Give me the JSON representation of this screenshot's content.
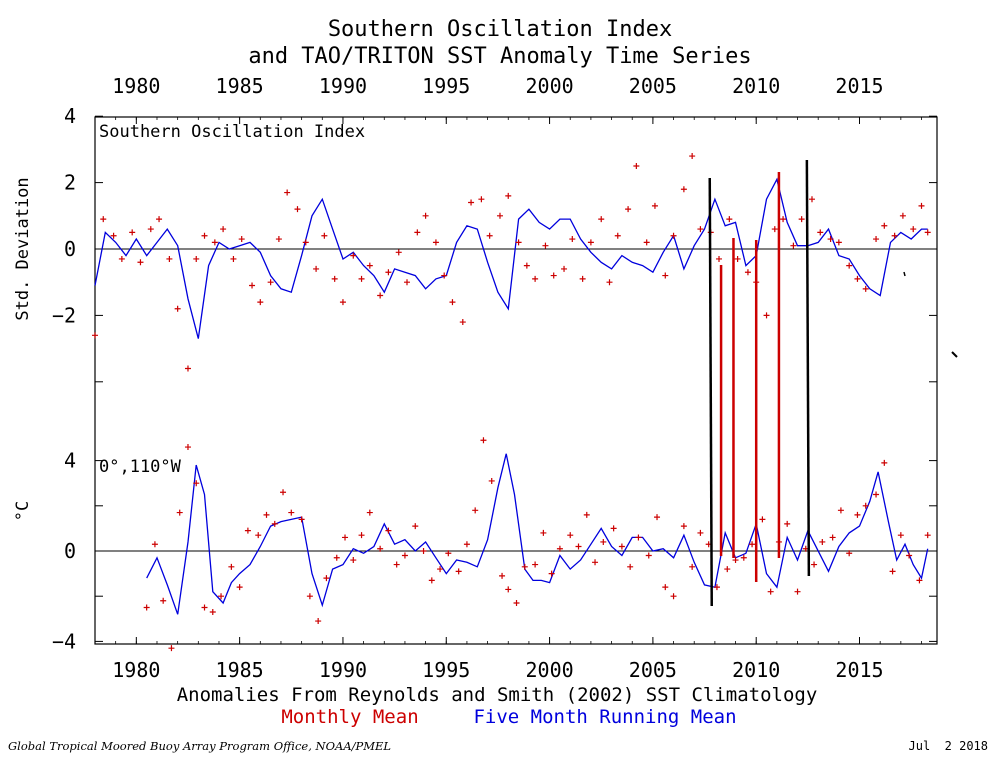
{
  "title": "Southern Oscillation Index",
  "subtitle": "and TAO/TRITON SST Anomaly Time Series",
  "footer_left": "Global Tropical Moored Buoy Array Program Office, NOAA/PMEL",
  "footer_right": "Jul  2 2018",
  "colors": {
    "monthly": "#cc0000",
    "running": "#0000dd",
    "axis": "#000000",
    "annot_black": "#000000",
    "annot_red": "#cc0000"
  },
  "chart_data": [
    {
      "type": "line",
      "panel_label": "Southern Oscillation Index",
      "xlabel": "",
      "ylabel": "Std. Deviation",
      "xlim": [
        1978,
        2018.75
      ],
      "ylim": [
        -4,
        4
      ],
      "x_ticks": [
        1980,
        1985,
        1990,
        1995,
        2000,
        2005,
        2010,
        2015
      ],
      "y_ticks": [
        -2,
        0,
        2,
        4
      ],
      "grid": false,
      "series": [
        {
          "name": "Five Month Running Mean",
          "x": [
            1978.0,
            1978.5,
            1979.0,
            1979.5,
            1980.0,
            1980.5,
            1981.0,
            1981.5,
            1982.0,
            1982.5,
            1983.0,
            1983.5,
            1984.0,
            1984.5,
            1985.0,
            1985.5,
            1986.0,
            1986.5,
            1987.0,
            1987.5,
            1988.0,
            1988.5,
            1989.0,
            1989.5,
            1990.0,
            1990.5,
            1991.0,
            1991.5,
            1992.0,
            1992.5,
            1993.0,
            1993.5,
            1994.0,
            1994.5,
            1995.0,
            1995.5,
            1996.0,
            1996.5,
            1997.0,
            1997.5,
            1998.0,
            1998.5,
            1999.0,
            1999.5,
            2000.0,
            2000.5,
            2001.0,
            2001.5,
            2002.0,
            2002.5,
            2003.0,
            2003.5,
            2004.0,
            2004.5,
            2005.0,
            2005.5,
            2006.0,
            2006.5,
            2007.0,
            2007.5,
            2008.0,
            2008.5,
            2009.0,
            2009.5,
            2010.0,
            2010.5,
            2011.0,
            2011.5,
            2012.0,
            2012.5,
            2013.0,
            2013.5,
            2014.0,
            2014.5,
            2015.0,
            2015.5,
            2016.0,
            2016.5,
            2017.0,
            2017.5,
            2018.0,
            2018.3
          ],
          "y": [
            -1.1,
            0.5,
            0.2,
            -0.2,
            0.3,
            -0.2,
            0.2,
            0.6,
            0.1,
            -1.5,
            -2.7,
            -0.5,
            0.2,
            0.0,
            0.1,
            0.2,
            -0.1,
            -0.8,
            -1.2,
            -1.3,
            -0.2,
            1.0,
            1.5,
            0.6,
            -0.3,
            -0.1,
            -0.5,
            -0.8,
            -1.3,
            -0.6,
            -0.7,
            -0.8,
            -1.2,
            -0.9,
            -0.8,
            0.2,
            0.7,
            0.6,
            -0.4,
            -1.3,
            -1.8,
            0.9,
            1.2,
            0.8,
            0.6,
            0.9,
            0.9,
            0.3,
            -0.1,
            -0.4,
            -0.6,
            -0.2,
            -0.4,
            -0.5,
            -0.7,
            -0.1,
            0.4,
            -0.6,
            0.1,
            0.6,
            1.5,
            0.7,
            0.8,
            -0.5,
            -0.2,
            1.5,
            2.1,
            0.8,
            0.1,
            0.1,
            0.2,
            0.6,
            -0.2,
            -0.3,
            -0.8,
            -1.2,
            -1.4,
            0.2,
            0.5,
            0.3,
            0.6,
            0.6
          ]
        },
        {
          "name": "Monthly Mean",
          "x": [
            1978.0,
            1978.4,
            1978.9,
            1979.3,
            1979.8,
            1980.2,
            1980.7,
            1981.1,
            1981.6,
            1982.0,
            1982.5,
            1982.9,
            1983.3,
            1983.8,
            1984.2,
            1984.7,
            1985.1,
            1985.6,
            1986.0,
            1986.5,
            1986.9,
            1987.3,
            1987.8,
            1988.2,
            1988.7,
            1989.1,
            1989.6,
            1990.0,
            1990.5,
            1990.9,
            1991.3,
            1991.8,
            1992.2,
            1992.7,
            1993.1,
            1993.6,
            1994.0,
            1994.5,
            1994.9,
            1995.3,
            1995.8,
            1996.2,
            1996.7,
            1997.1,
            1997.6,
            1998.0,
            1998.5,
            1998.9,
            1999.3,
            1999.8,
            2000.2,
            2000.7,
            2001.1,
            2001.6,
            2002.0,
            2002.5,
            2002.9,
            2003.3,
            2003.8,
            2004.2,
            2004.7,
            2005.1,
            2005.6,
            2006.0,
            2006.5,
            2006.9,
            2007.3,
            2007.8,
            2008.2,
            2008.7,
            2009.1,
            2009.6,
            2010.0,
            2010.5,
            2010.9,
            2011.3,
            2011.8,
            2012.2,
            2012.7,
            2013.1,
            2013.6,
            2014.0,
            2014.5,
            2014.9,
            2015.3,
            2015.8,
            2016.2,
            2016.7,
            2017.1,
            2017.6,
            2018.0,
            2018.3
          ],
          "y": [
            -2.6,
            0.9,
            0.4,
            -0.3,
            0.5,
            -0.4,
            0.6,
            0.9,
            -0.3,
            -1.8,
            -3.6,
            -0.3,
            0.4,
            0.2,
            0.6,
            -0.3,
            0.3,
            -1.1,
            -1.6,
            -1.0,
            0.3,
            1.7,
            1.2,
            0.2,
            -0.6,
            0.4,
            -0.9,
            -1.6,
            -0.2,
            -0.9,
            -0.5,
            -1.4,
            -0.7,
            -0.1,
            -1.0,
            0.5,
            1.0,
            0.2,
            -0.8,
            -1.6,
            -2.2,
            1.4,
            1.5,
            0.4,
            1.0,
            1.6,
            0.2,
            -0.5,
            -0.9,
            0.1,
            -0.8,
            -0.6,
            0.3,
            -0.9,
            0.2,
            0.9,
            -1.0,
            0.4,
            1.2,
            2.5,
            0.2,
            1.3,
            -0.8,
            0.4,
            1.8,
            2.8,
            0.6,
            0.5,
            -0.3,
            0.9,
            -0.3,
            -0.7,
            -1.0,
            -2.0,
            0.6,
            0.9,
            0.1,
            0.9,
            1.5,
            0.5,
            0.3,
            0.2,
            -0.5,
            -0.9,
            -1.2,
            0.3,
            0.7,
            0.4,
            1.0,
            0.6,
            1.3,
            0.5
          ]
        }
      ]
    },
    {
      "type": "line",
      "panel_label": "0°,110°W",
      "xlabel": "Anomalies From Reynolds and Smith (2002) SST Climatology",
      "ylabel": "°C",
      "xlim": [
        1978,
        2018.75
      ],
      "ylim": [
        -4,
        4
      ],
      "x_ticks": [
        1980,
        1985,
        1990,
        1995,
        2000,
        2005,
        2010,
        2015
      ],
      "y_ticks": [
        -4,
        0,
        4
      ],
      "grid": false,
      "series": [
        {
          "name": "Five Month Running Mean",
          "x": [
            1980.5,
            1981.0,
            1981.5,
            1982.0,
            1982.5,
            1982.9,
            1983.3,
            1983.7,
            1984.2,
            1984.6,
            1985.0,
            1985.5,
            1986.0,
            1986.5,
            1987.0,
            1987.5,
            1988.0,
            1988.5,
            1989.0,
            1989.5,
            1990.0,
            1990.5,
            1991.0,
            1991.5,
            1992.0,
            1992.5,
            1993.0,
            1993.5,
            1994.0,
            1994.5,
            1995.0,
            1995.5,
            1996.0,
            1996.5,
            1997.0,
            1997.5,
            1997.9,
            1998.3,
            1998.8,
            1999.2,
            1999.6,
            2000.0,
            2000.5,
            2001.0,
            2001.5,
            2002.0,
            2002.5,
            2003.0,
            2003.5,
            2004.0,
            2004.5,
            2005.0,
            2005.5,
            2006.0,
            2006.5,
            2007.0,
            2007.5,
            2008.0,
            2008.5,
            2009.0,
            2009.5,
            2010.0,
            2010.5,
            2011.0,
            2011.5,
            2012.0,
            2012.5,
            2013.5,
            2014.0,
            2014.5,
            2015.0,
            2015.5,
            2015.9,
            2016.4,
            2016.8,
            2017.2,
            2017.6,
            2018.0,
            2018.3
          ],
          "y": [
            -1.2,
            -0.3,
            -1.5,
            -2.8,
            0.4,
            3.8,
            2.5,
            -1.8,
            -2.3,
            -1.4,
            -1.0,
            -0.6,
            0.2,
            1.1,
            1.3,
            1.4,
            1.5,
            -1.0,
            -2.4,
            -0.8,
            -0.6,
            0.1,
            -0.1,
            0.2,
            1.2,
            0.3,
            0.5,
            0.0,
            0.4,
            -0.3,
            -1.0,
            -0.4,
            -0.5,
            -0.7,
            0.5,
            2.8,
            4.3,
            2.5,
            -0.8,
            -1.3,
            -1.3,
            -1.4,
            -0.2,
            -0.8,
            -0.4,
            0.3,
            1.0,
            0.2,
            -0.2,
            0.6,
            0.6,
            0.0,
            0.1,
            -0.3,
            0.7,
            -0.5,
            -1.5,
            -1.6,
            0.8,
            -0.3,
            -0.1,
            1.2,
            -1.0,
            -1.6,
            0.6,
            -0.4,
            0.9,
            -0.9,
            0.2,
            0.8,
            1.1,
            2.2,
            3.5,
            1.3,
            -0.4,
            0.3,
            -0.6,
            -1.2,
            0.1
          ]
        },
        {
          "name": "Monthly Mean",
          "x": [
            1980.5,
            1980.9,
            1981.3,
            1981.7,
            1982.1,
            1982.5,
            1982.9,
            1983.3,
            1983.7,
            1984.1,
            1984.6,
            1985.0,
            1985.4,
            1985.9,
            1986.3,
            1986.7,
            1987.1,
            1987.5,
            1988.0,
            1988.4,
            1988.8,
            1989.2,
            1989.7,
            1990.1,
            1990.5,
            1990.9,
            1991.3,
            1991.8,
            1992.2,
            1992.6,
            1993.0,
            1993.5,
            1993.9,
            1994.3,
            1994.7,
            1995.1,
            1995.6,
            1996.0,
            1996.4,
            1996.8,
            1997.2,
            1997.7,
            1998.0,
            1998.4,
            1998.8,
            1999.3,
            1999.7,
            2000.1,
            2000.5,
            2001.0,
            2001.4,
            2001.8,
            2002.2,
            2002.6,
            2003.1,
            2003.5,
            2003.9,
            2004.3,
            2004.8,
            2005.2,
            2005.6,
            2006.0,
            2006.5,
            2006.9,
            2007.3,
            2007.7,
            2008.1,
            2008.6,
            2009.0,
            2009.4,
            2009.8,
            2010.3,
            2010.7,
            2011.1,
            2011.5,
            2012.0,
            2012.4,
            2012.8,
            2013.2,
            2013.7,
            2014.1,
            2014.5,
            2014.9,
            2015.3,
            2015.8,
            2016.2,
            2016.6,
            2017.0,
            2017.4,
            2017.9,
            2018.3
          ],
          "y": [
            -2.5,
            0.3,
            -2.2,
            -4.3,
            1.7,
            4.6,
            3.0,
            -2.5,
            -2.7,
            -2.0,
            -0.7,
            -1.6,
            0.9,
            0.7,
            1.6,
            1.2,
            2.6,
            1.7,
            1.4,
            -2.0,
            -3.1,
            -1.2,
            -0.3,
            0.6,
            -0.4,
            0.7,
            1.7,
            0.1,
            0.9,
            -0.6,
            -0.2,
            1.1,
            0.0,
            -1.3,
            -0.8,
            -0.1,
            -0.9,
            0.3,
            1.8,
            4.9,
            3.1,
            -1.1,
            -1.7,
            -2.3,
            -0.7,
            -0.6,
            0.8,
            -1.0,
            0.1,
            0.7,
            0.2,
            1.6,
            -0.5,
            0.4,
            1.0,
            0.2,
            -0.7,
            0.6,
            -0.2,
            1.5,
            -1.6,
            -2.0,
            1.1,
            -0.7,
            0.8,
            0.3,
            -1.6,
            -0.8,
            -0.4,
            -0.3,
            0.3,
            1.4,
            -1.8,
            0.4,
            1.2,
            -1.8,
            0.1,
            -0.6,
            0.4,
            0.6,
            1.8,
            -0.1,
            1.6,
            2.0,
            2.5,
            3.9,
            -0.9,
            0.7,
            -0.2,
            -1.3,
            0.7
          ]
        }
      ]
    }
  ],
  "legend": {
    "monthly_label": "Monthly Mean",
    "running_label": "Five Month Running Mean"
  },
  "annotations": {
    "black_lines_years": [
      2007.8,
      2012.5
    ],
    "red_lines_years": [
      2008.3,
      2008.9,
      2010.0,
      2011.1
    ]
  }
}
